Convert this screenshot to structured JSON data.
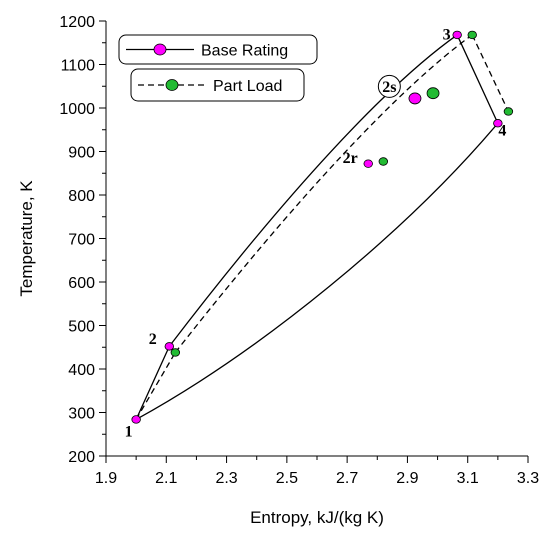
{
  "chart_data": {
    "type": "scatter",
    "xlabel": "Entropy, kJ/(kg K)",
    "ylabel": "Temperature, K",
    "xlim": [
      1.9,
      3.3
    ],
    "ylim": [
      200,
      1200
    ],
    "xticks": [
      "1.9",
      "2.1",
      "2.3",
      "2.5",
      "2.7",
      "2.9",
      "3.1",
      "3.3"
    ],
    "yticks": [
      "200",
      "300",
      "400",
      "500",
      "600",
      "700",
      "800",
      "900",
      "1000",
      "1100",
      "1200"
    ],
    "legend_placement": "top-left",
    "series": [
      {
        "name": "Base Rating",
        "color": "#ff00ff",
        "line": "solid",
        "points": [
          {
            "x": 2.0,
            "y": 284
          },
          {
            "x": 2.11,
            "y": 452
          },
          {
            "x": 2.77,
            "y": 872
          },
          {
            "x": 2.925,
            "y": 1022
          },
          {
            "x": 3.065,
            "y": 1168
          },
          {
            "x": 3.2,
            "y": 965
          }
        ]
      },
      {
        "name": "Part Load",
        "color": "#22bb33",
        "line": "dashed",
        "points": [
          {
            "x": 2.13,
            "y": 438
          },
          {
            "x": 2.82,
            "y": 877
          },
          {
            "x": 2.985,
            "y": 1034
          },
          {
            "x": 3.115,
            "y": 1168
          },
          {
            "x": 3.235,
            "y": 992
          }
        ]
      }
    ],
    "annotations": [
      {
        "text": "1",
        "x": 1.975,
        "y": 245
      },
      {
        "text": "2",
        "x": 2.055,
        "y": 458
      },
      {
        "text": "2r",
        "x": 2.71,
        "y": 873
      },
      {
        "text": "2s",
        "x": 2.84,
        "y": 1037
      },
      {
        "text": "3",
        "x": 3.03,
        "y": 1157
      },
      {
        "text": "4",
        "x": 3.215,
        "y": 937
      }
    ]
  }
}
